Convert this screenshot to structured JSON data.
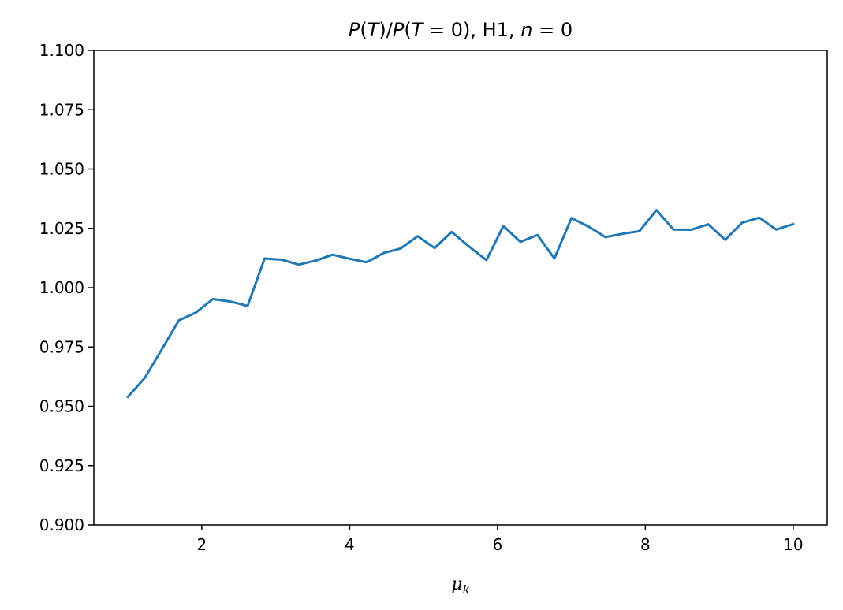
{
  "chart_data": {
    "type": "line",
    "title": "P(T)/P(T = 0), H1, n = 0",
    "title_parts": {
      "p1": "P",
      "p2": "(",
      "p3": "T",
      "p4": ")/",
      "p5": "P",
      "p6": "(",
      "p7": "T",
      "p8": " = 0), H1, ",
      "p9": "n",
      "p10": " = 0"
    },
    "xlabel": "μk",
    "xlabel_parts": {
      "base": "μ",
      "sub": "k"
    },
    "ylabel": "",
    "xlim": [
      0.54,
      10.46
    ],
    "ylim": [
      0.9,
      1.1
    ],
    "xticks": [
      2,
      4,
      6,
      8,
      10
    ],
    "xtick_labels": [
      "2",
      "4",
      "6",
      "8",
      "10"
    ],
    "yticks": [
      0.9,
      0.925,
      0.95,
      0.975,
      1.0,
      1.025,
      1.05,
      1.075,
      1.1
    ],
    "ytick_labels": [
      "0.900",
      "0.925",
      "0.950",
      "0.975",
      "1.000",
      "1.025",
      "1.050",
      "1.075",
      "1.100"
    ],
    "grid": false,
    "legend": "none",
    "series": [
      {
        "name": "H1",
        "color": "#1f77b4",
        "x": [
          1.0,
          1.23,
          1.46,
          1.69,
          1.92,
          2.15,
          2.38,
          2.62,
          2.85,
          3.08,
          3.31,
          3.54,
          3.77,
          4.0,
          4.23,
          4.46,
          4.69,
          4.92,
          5.15,
          5.38,
          5.62,
          5.85,
          6.08,
          6.31,
          6.54,
          6.77,
          7.0,
          7.23,
          7.46,
          7.69,
          7.92,
          8.15,
          8.38,
          8.62,
          8.85,
          9.08,
          9.31,
          9.54,
          9.77,
          10.0
        ],
        "y": [
          0.954,
          0.962,
          0.974,
          0.9862,
          0.9895,
          0.9952,
          0.9942,
          0.9923,
          1.0123,
          1.0118,
          1.0097,
          1.0114,
          1.0139,
          1.0122,
          1.0107,
          1.0146,
          1.0165,
          1.0217,
          1.0167,
          1.0235,
          1.0172,
          1.0116,
          1.026,
          1.0193,
          1.0222,
          1.0123,
          1.0293,
          1.0258,
          1.0213,
          1.0227,
          1.0238,
          1.0327,
          1.0245,
          1.0244,
          1.0267,
          1.0202,
          1.0274,
          1.0295,
          1.0245,
          1.0268
        ]
      }
    ]
  }
}
